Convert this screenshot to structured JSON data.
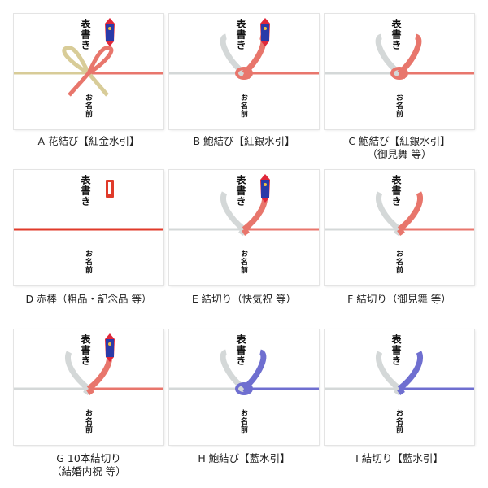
{
  "card_text": {
    "omote": "表書き",
    "namae": "お名前"
  },
  "colors": {
    "red": "#e8766c",
    "gold": "#d8cc98",
    "silver": "#d4d8d8",
    "blue": "#6f6fd0",
    "bar_red": "#e03a2a"
  },
  "items": [
    {
      "label": "A 花結び【紅金水引】",
      "sub": "",
      "knot": "hana",
      "left": "gold",
      "right": "red",
      "noshi": true
    },
    {
      "label": "B 鮑結び【紅銀水引】",
      "sub": "",
      "knot": "awabi",
      "left": "silver",
      "right": "red",
      "noshi": true
    },
    {
      "label": "C 鮑結び【紅銀水引】",
      "sub": "（御見舞 等）",
      "knot": "awabi",
      "left": "silver",
      "right": "red",
      "noshi": false
    },
    {
      "label": "D 赤棒（粗品・記念品 等）",
      "sub": "",
      "knot": "bar",
      "left": "bar_red",
      "right": "bar_red",
      "noshi": false
    },
    {
      "label": "E 結切り（快気祝 等）",
      "sub": "",
      "knot": "kiri",
      "left": "silver",
      "right": "red",
      "noshi": true
    },
    {
      "label": "F 結切り（御見舞 等）",
      "sub": "",
      "knot": "kiri",
      "left": "silver",
      "right": "red",
      "noshi": false
    },
    {
      "label": "G 10本結切り",
      "sub": "（結婚内祝 等）",
      "knot": "kiri",
      "left": "silver",
      "right": "red",
      "noshi": true
    },
    {
      "label": "H 鮑結び【藍水引】",
      "sub": "",
      "knot": "awabi",
      "left": "silver",
      "right": "blue",
      "noshi": false
    },
    {
      "label": "I 結切り【藍水引】",
      "sub": "",
      "knot": "kiri",
      "left": "silver",
      "right": "blue",
      "noshi": false
    }
  ]
}
